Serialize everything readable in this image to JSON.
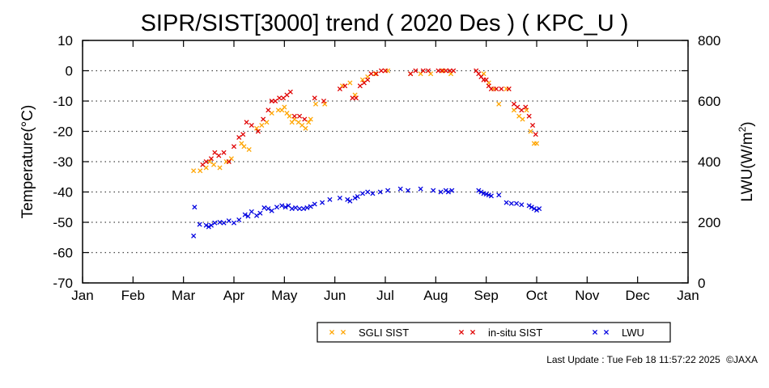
{
  "page": {
    "last_update_label": "Last Update : Tue Feb 18 11:57:22 2025",
    "copyright": "©JAXA"
  },
  "chart_data": {
    "type": "scatter",
    "title": "SIPR/SIST[3000] trend ( 2020 Des ) ( KPC_U )",
    "ylabel": "Temperature(°C)",
    "y2label_main": "LWU(W/m",
    "y2label_sup": "2",
    "y2label_end": ")",
    "ylim": [
      -70,
      10
    ],
    "y2lim": [
      0,
      800
    ],
    "yticks": [
      10,
      0,
      -10,
      -20,
      -30,
      -40,
      -50,
      -60,
      -70
    ],
    "y2ticks": [
      800,
      600,
      400,
      200,
      0
    ],
    "xlim": [
      0,
      12
    ],
    "xticks": [
      "Jan",
      "Feb",
      "Mar",
      "Apr",
      "May",
      "Jun",
      "Jul",
      "Aug",
      "Sep",
      "Oct",
      "Nov",
      "Dec",
      "Jan"
    ],
    "gridlines_y": [
      0,
      -10,
      -20,
      -30,
      -40,
      -50,
      -60
    ],
    "grid": "horizontal dotted",
    "legend_position": "bottom-right",
    "colors": {
      "sgli": "#ffa500",
      "insitu": "#e00000",
      "lwu": "#0000e0"
    },
    "series": [
      {
        "name": "SGLI SIST",
        "axis": "left",
        "color": "#ffa500",
        "points": [
          [
            2.2,
            -33
          ],
          [
            2.33,
            -33
          ],
          [
            2.45,
            -32
          ],
          [
            2.52,
            -30
          ],
          [
            2.6,
            -31
          ],
          [
            2.72,
            -32
          ],
          [
            2.85,
            -30
          ],
          [
            2.95,
            -29
          ],
          [
            3.15,
            -24
          ],
          [
            3.2,
            -25
          ],
          [
            3.3,
            -26
          ],
          [
            3.45,
            -19
          ],
          [
            3.55,
            -18
          ],
          [
            3.65,
            -17
          ],
          [
            3.75,
            -14
          ],
          [
            3.88,
            -13
          ],
          [
            3.95,
            -13
          ],
          [
            4.0,
            -12
          ],
          [
            4.05,
            -14
          ],
          [
            4.1,
            -15
          ],
          [
            4.15,
            -17
          ],
          [
            4.2,
            -16
          ],
          [
            4.28,
            -17
          ],
          [
            4.35,
            -18
          ],
          [
            4.42,
            -19
          ],
          [
            4.48,
            -17
          ],
          [
            4.52,
            -16
          ],
          [
            4.62,
            -11
          ],
          [
            4.8,
            -11
          ],
          [
            5.15,
            -5
          ],
          [
            5.3,
            -4
          ],
          [
            5.4,
            -8
          ],
          [
            5.55,
            -3
          ],
          [
            5.65,
            -2
          ],
          [
            5.8,
            -1
          ],
          [
            6.05,
            0
          ],
          [
            6.5,
            -1
          ],
          [
            6.7,
            -1
          ],
          [
            6.9,
            -1
          ],
          [
            7.15,
            0
          ],
          [
            7.3,
            -1
          ],
          [
            7.95,
            -1
          ],
          [
            8.05,
            -4
          ],
          [
            8.15,
            -6
          ],
          [
            8.25,
            -11
          ],
          [
            8.4,
            -6
          ],
          [
            8.55,
            -13
          ],
          [
            8.65,
            -15
          ],
          [
            8.72,
            -16
          ],
          [
            8.8,
            -13
          ],
          [
            8.88,
            -20
          ],
          [
            8.95,
            -24
          ],
          [
            9.0,
            -24
          ]
        ]
      },
      {
        "name": "in-situ SIST",
        "axis": "left",
        "color": "#e00000",
        "points": [
          [
            2.38,
            -31
          ],
          [
            2.45,
            -30
          ],
          [
            2.55,
            -29
          ],
          [
            2.62,
            -27
          ],
          [
            2.7,
            -28
          ],
          [
            2.8,
            -27
          ],
          [
            2.9,
            -30
          ],
          [
            3.0,
            -25
          ],
          [
            3.1,
            -22
          ],
          [
            3.18,
            -21
          ],
          [
            3.25,
            -17
          ],
          [
            3.35,
            -18
          ],
          [
            3.48,
            -20
          ],
          [
            3.58,
            -16
          ],
          [
            3.68,
            -13
          ],
          [
            3.75,
            -10
          ],
          [
            3.82,
            -10
          ],
          [
            3.9,
            -9
          ],
          [
            3.98,
            -9
          ],
          [
            4.05,
            -8
          ],
          [
            4.12,
            -7
          ],
          [
            4.2,
            -15
          ],
          [
            4.3,
            -15
          ],
          [
            4.4,
            -16
          ],
          [
            4.6,
            -9
          ],
          [
            4.78,
            -10
          ],
          [
            5.1,
            -6
          ],
          [
            5.2,
            -5
          ],
          [
            5.35,
            -9
          ],
          [
            5.42,
            -9
          ],
          [
            5.5,
            -5
          ],
          [
            5.58,
            -4
          ],
          [
            5.65,
            -3
          ],
          [
            5.72,
            -1
          ],
          [
            5.82,
            -1
          ],
          [
            5.92,
            0
          ],
          [
            6.0,
            0
          ],
          [
            6.5,
            -1
          ],
          [
            6.6,
            0
          ],
          [
            6.75,
            0
          ],
          [
            6.85,
            0
          ],
          [
            7.05,
            0
          ],
          [
            7.12,
            0
          ],
          [
            7.2,
            0
          ],
          [
            7.28,
            0
          ],
          [
            7.35,
            0
          ],
          [
            7.8,
            0
          ],
          [
            7.85,
            -1
          ],
          [
            7.9,
            -2
          ],
          [
            7.95,
            -3
          ],
          [
            8.0,
            -3
          ],
          [
            8.05,
            -5
          ],
          [
            8.1,
            -6
          ],
          [
            8.2,
            -6
          ],
          [
            8.3,
            -6
          ],
          [
            8.45,
            -6
          ],
          [
            8.55,
            -11
          ],
          [
            8.62,
            -12
          ],
          [
            8.7,
            -13
          ],
          [
            8.78,
            -12
          ],
          [
            8.85,
            -15
          ],
          [
            8.92,
            -18
          ],
          [
            8.98,
            -21
          ]
        ]
      },
      {
        "name": "LWU",
        "axis": "right",
        "color": "#0000e0",
        "points": [
          [
            2.2,
            155
          ],
          [
            2.22,
            250
          ],
          [
            2.32,
            193
          ],
          [
            2.45,
            190
          ],
          [
            2.5,
            185
          ],
          [
            2.55,
            190
          ],
          [
            2.62,
            198
          ],
          [
            2.72,
            200
          ],
          [
            2.8,
            198
          ],
          [
            2.9,
            205
          ],
          [
            3.0,
            198
          ],
          [
            3.1,
            208
          ],
          [
            3.22,
            225
          ],
          [
            3.28,
            220
          ],
          [
            3.35,
            235
          ],
          [
            3.45,
            222
          ],
          [
            3.52,
            230
          ],
          [
            3.6,
            248
          ],
          [
            3.68,
            245
          ],
          [
            3.75,
            238
          ],
          [
            3.85,
            250
          ],
          [
            3.95,
            255
          ],
          [
            4.02,
            250
          ],
          [
            4.08,
            255
          ],
          [
            4.15,
            245
          ],
          [
            4.22,
            248
          ],
          [
            4.3,
            245
          ],
          [
            4.38,
            245
          ],
          [
            4.45,
            248
          ],
          [
            4.52,
            252
          ],
          [
            4.6,
            260
          ],
          [
            4.75,
            265
          ],
          [
            4.9,
            275
          ],
          [
            5.1,
            280
          ],
          [
            5.25,
            275
          ],
          [
            5.3,
            270
          ],
          [
            5.4,
            280
          ],
          [
            5.45,
            285
          ],
          [
            5.55,
            295
          ],
          [
            5.65,
            300
          ],
          [
            5.75,
            295
          ],
          [
            5.9,
            300
          ],
          [
            6.05,
            305
          ],
          [
            6.3,
            310
          ],
          [
            6.45,
            305
          ],
          [
            6.7,
            310
          ],
          [
            6.95,
            305
          ],
          [
            7.1,
            300
          ],
          [
            7.2,
            305
          ],
          [
            7.25,
            300
          ],
          [
            7.32,
            305
          ],
          [
            7.85,
            305
          ],
          [
            7.9,
            300
          ],
          [
            7.95,
            295
          ],
          [
            8.0,
            293
          ],
          [
            8.05,
            290
          ],
          [
            8.1,
            287
          ],
          [
            8.25,
            290
          ],
          [
            8.4,
            265
          ],
          [
            8.5,
            262
          ],
          [
            8.6,
            262
          ],
          [
            8.7,
            258
          ],
          [
            8.85,
            255
          ],
          [
            8.9,
            250
          ],
          [
            8.95,
            245
          ],
          [
            9.0,
            240
          ],
          [
            9.05,
            245
          ]
        ]
      }
    ]
  }
}
